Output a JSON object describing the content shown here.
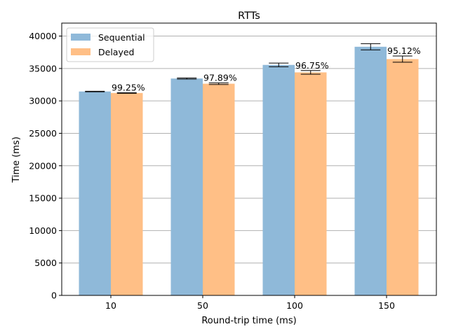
{
  "chart_data": {
    "type": "bar",
    "title": "RTTs",
    "xlabel": "Round-trip time (ms)",
    "ylabel": "Time (ms)",
    "categories": [
      "10",
      "50",
      "100",
      "150"
    ],
    "ylim": [
      0,
      40000
    ],
    "yticks": [
      0,
      5000,
      10000,
      15000,
      20000,
      25000,
      30000,
      35000,
      40000
    ],
    "grid": "horizontal",
    "legend_position": "top-left",
    "series": [
      {
        "name": "Sequential",
        "color": "#8fb9d9",
        "values": [
          31450,
          33450,
          35550,
          38350
        ],
        "errors": [
          40,
          90,
          280,
          480
        ]
      },
      {
        "name": "Delayed",
        "color": "#ffbf86",
        "values": [
          31220,
          32650,
          34400,
          36450
        ],
        "errors": [
          40,
          130,
          280,
          480
        ]
      }
    ],
    "annotations": [
      "99.25%",
      "97.89%",
      "96.75%",
      "95.12%"
    ]
  }
}
